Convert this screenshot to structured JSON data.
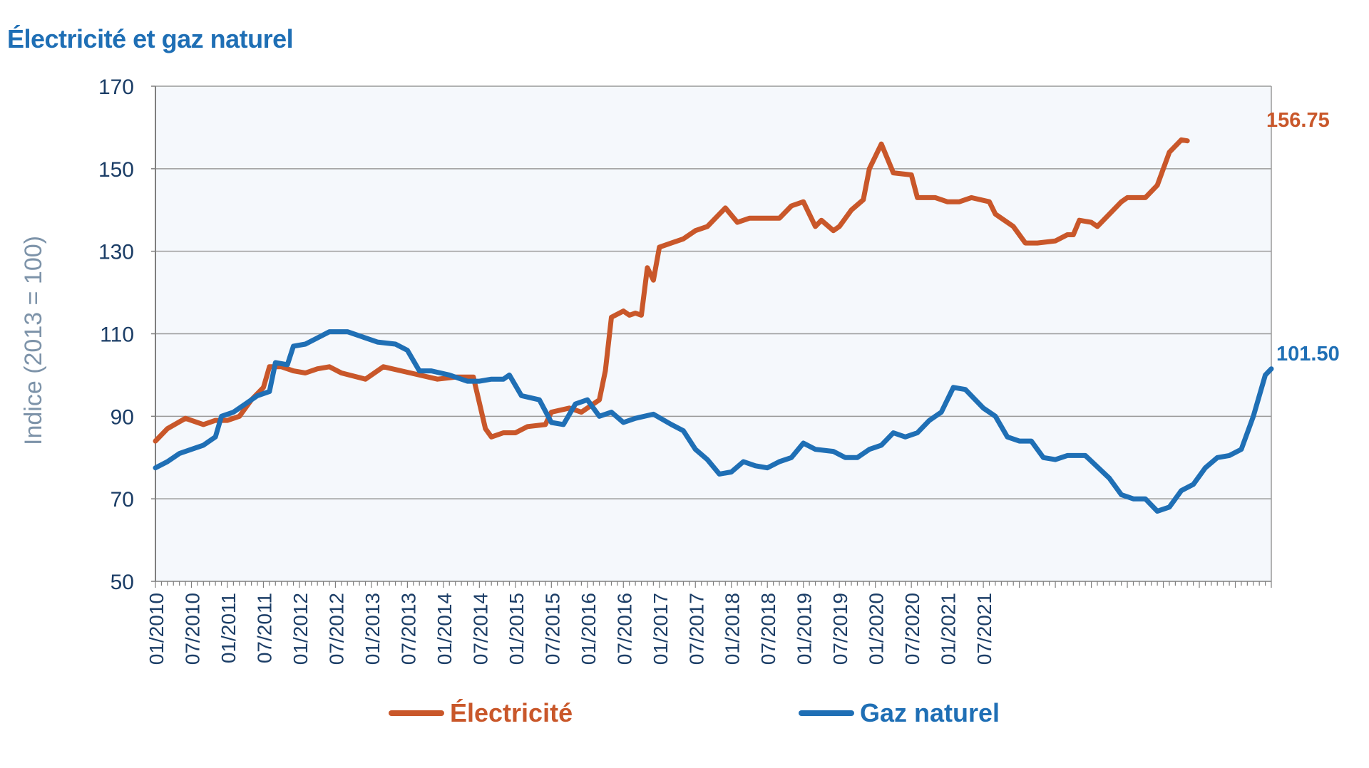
{
  "title": "Électricité et gaz naturel",
  "chart_data": {
    "type": "line",
    "title": "Électricité et gaz naturel",
    "ylabel": "Indice (2013 = 100)",
    "xlabel": "",
    "ylim": [
      50,
      170
    ],
    "yticks": [
      50,
      70,
      90,
      110,
      130,
      150,
      170
    ],
    "x_range": [
      "01/2010",
      "11/2021"
    ],
    "x_tick_labels": [
      "01/2010",
      "07/2010",
      "01/2011",
      "07/2011",
      "01/2012",
      "07/2012",
      "01/2013",
      "07/2013",
      "01/2014",
      "07/2014",
      "01/2015",
      "07/2015",
      "01/2016",
      "07/2016",
      "01/2017",
      "07/2017",
      "01/2018",
      "07/2018",
      "01/2019",
      "07/2019",
      "01/2020",
      "07/2020",
      "01/2021",
      "07/2021"
    ],
    "grid": true,
    "legend_position": "bottom",
    "series": [
      {
        "name": "Électricité",
        "color": "#c9572a",
        "end_label": "156.75",
        "points": [
          [
            "01/2010",
            84
          ],
          [
            "03/2010",
            87
          ],
          [
            "06/2010",
            89.5
          ],
          [
            "09/2010",
            88
          ],
          [
            "11/2010",
            89
          ],
          [
            "01/2011",
            89
          ],
          [
            "03/2011",
            90
          ],
          [
            "05/2011",
            94
          ],
          [
            "07/2011",
            97
          ],
          [
            "08/2011",
            102
          ],
          [
            "10/2011",
            102
          ],
          [
            "12/2011",
            101
          ],
          [
            "02/2012",
            100.5
          ],
          [
            "04/2012",
            101.5
          ],
          [
            "06/2012",
            102
          ],
          [
            "08/2012",
            100.5
          ],
          [
            "12/2012",
            99
          ],
          [
            "03/2013",
            102
          ],
          [
            "06/2013",
            101
          ],
          [
            "09/2013",
            100
          ],
          [
            "12/2013",
            99
          ],
          [
            "03/2014",
            99.5
          ],
          [
            "06/2014",
            99.5
          ],
          [
            "08/2014",
            87
          ],
          [
            "09/2014",
            85
          ],
          [
            "11/2014",
            86
          ],
          [
            "01/2015",
            86
          ],
          [
            "03/2015",
            87.5
          ],
          [
            "06/2015",
            88
          ],
          [
            "07/2015",
            91
          ],
          [
            "10/2015",
            92
          ],
          [
            "12/2015",
            91
          ],
          [
            "03/2016",
            94
          ],
          [
            "04/2016",
            101
          ],
          [
            "05/2016",
            114
          ],
          [
            "07/2016",
            115.5
          ],
          [
            "08/2016",
            114.5
          ],
          [
            "09/2016",
            115
          ],
          [
            "10/2016",
            114.5
          ],
          [
            "11/2016",
            126
          ],
          [
            "12/2016",
            123
          ],
          [
            "01/2017",
            131
          ],
          [
            "03/2017",
            132
          ],
          [
            "05/2017",
            133
          ],
          [
            "07/2017",
            135
          ],
          [
            "09/2017",
            136
          ],
          [
            "11/2017",
            139
          ],
          [
            "12/2017",
            140.5
          ],
          [
            "02/2018",
            137
          ],
          [
            "04/2018",
            138
          ],
          [
            "09/2018",
            138
          ],
          [
            "11/2018",
            141
          ],
          [
            "01/2019",
            142
          ],
          [
            "03/2019",
            136
          ],
          [
            "04/2019",
            137.5
          ],
          [
            "06/2019",
            135
          ],
          [
            "07/2019",
            136
          ],
          [
            "09/2019",
            140
          ],
          [
            "11/2019",
            142.5
          ],
          [
            "12/2019",
            150
          ],
          [
            "02/2020",
            156
          ],
          [
            "04/2020",
            149
          ],
          [
            "07/2020",
            148.5
          ],
          [
            "08/2020",
            143
          ],
          [
            "11/2020",
            143
          ],
          [
            "01/2021",
            142
          ],
          [
            "03/2021",
            142
          ],
          [
            "05/2021",
            143
          ],
          [
            "08/2021",
            142
          ],
          [
            "09/2021",
            139
          ],
          [
            "12/2021",
            136
          ],
          [
            "02/2022",
            132
          ],
          [
            "04/2022",
            132
          ],
          [
            "07/2022",
            132.5
          ],
          [
            "09/2022",
            134
          ],
          [
            "10/2022",
            134
          ],
          [
            "11/2022",
            137.5
          ],
          [
            "01/2023",
            137
          ],
          [
            "02/2023",
            136
          ],
          [
            "06/2023",
            142
          ],
          [
            "07/2023",
            143
          ],
          [
            "10/2023",
            143
          ],
          [
            "12/2023",
            146
          ],
          [
            "02/2024",
            154
          ],
          [
            "04/2024",
            157
          ],
          [
            "05/2024",
            156.75
          ]
        ]
      },
      {
        "name": "Gaz naturel",
        "color": "#1f6fb5",
        "end_label": "101.50",
        "points": [
          [
            "01/2010",
            77.5
          ],
          [
            "03/2010",
            79
          ],
          [
            "05/2010",
            81
          ],
          [
            "07/2010",
            82
          ],
          [
            "09/2010",
            83
          ],
          [
            "11/2010",
            85
          ],
          [
            "12/2010",
            90
          ],
          [
            "02/2011",
            91
          ],
          [
            "04/2011",
            93
          ],
          [
            "06/2011",
            95
          ],
          [
            "08/2011",
            96
          ],
          [
            "09/2011",
            103
          ],
          [
            "11/2011",
            102.5
          ],
          [
            "12/2011",
            107
          ],
          [
            "02/2012",
            107.5
          ],
          [
            "04/2012",
            109
          ],
          [
            "06/2012",
            110.5
          ],
          [
            "09/2012",
            110.5
          ],
          [
            "12/2012",
            109
          ],
          [
            "02/2013",
            108
          ],
          [
            "05/2013",
            107.5
          ],
          [
            "07/2013",
            106
          ],
          [
            "09/2013",
            101
          ],
          [
            "11/2013",
            101
          ],
          [
            "02/2014",
            100
          ],
          [
            "05/2014",
            98.5
          ],
          [
            "07/2014",
            98.5
          ],
          [
            "09/2014",
            99
          ],
          [
            "11/2014",
            99
          ],
          [
            "12/2014",
            100
          ],
          [
            "02/2015",
            95
          ],
          [
            "05/2015",
            94
          ],
          [
            "07/2015",
            88.5
          ],
          [
            "09/2015",
            88
          ],
          [
            "11/2015",
            93
          ],
          [
            "01/2016",
            94
          ],
          [
            "03/2016",
            90
          ],
          [
            "05/2016",
            91
          ],
          [
            "07/2016",
            88.5
          ],
          [
            "09/2016",
            89.5
          ],
          [
            "12/2016",
            90.5
          ],
          [
            "03/2017",
            88
          ],
          [
            "05/2017",
            86.5
          ],
          [
            "07/2017",
            82
          ],
          [
            "09/2017",
            79.5
          ],
          [
            "11/2017",
            76
          ],
          [
            "01/2018",
            76.5
          ],
          [
            "03/2018",
            79
          ],
          [
            "05/2018",
            78
          ],
          [
            "07/2018",
            77.5
          ],
          [
            "09/2018",
            79
          ],
          [
            "11/2018",
            80
          ],
          [
            "01/2019",
            83.5
          ],
          [
            "03/2019",
            82
          ],
          [
            "06/2019",
            81.5
          ],
          [
            "08/2019",
            80
          ],
          [
            "10/2019",
            80
          ],
          [
            "12/2019",
            82
          ],
          [
            "02/2020",
            83
          ],
          [
            "04/2020",
            86
          ],
          [
            "06/2020",
            85
          ],
          [
            "08/2020",
            86
          ],
          [
            "10/2020",
            89
          ],
          [
            "12/2020",
            91
          ],
          [
            "02/2021",
            97
          ],
          [
            "04/2021",
            96.5
          ],
          [
            "07/2021",
            92
          ],
          [
            "09/2021",
            90
          ],
          [
            "11/2021",
            85
          ],
          [
            "01/2022",
            84
          ],
          [
            "03/2022",
            84
          ],
          [
            "05/2022",
            80
          ],
          [
            "07/2022",
            79.5
          ],
          [
            "09/2022",
            80.5
          ],
          [
            "12/2022",
            80.5
          ],
          [
            "04/2023",
            75
          ],
          [
            "06/2023",
            71
          ],
          [
            "08/2023",
            70
          ],
          [
            "10/2023",
            70
          ],
          [
            "12/2023",
            67
          ],
          [
            "02/2024",
            68
          ],
          [
            "04/2024",
            72
          ],
          [
            "06/2024",
            73.5
          ],
          [
            "08/2024",
            77.5
          ],
          [
            "10/2024",
            80
          ],
          [
            "12/2024",
            80.5
          ],
          [
            "02/2025",
            82
          ],
          [
            "04/2025",
            90
          ],
          [
            "06/2025",
            100
          ],
          [
            "07/2025",
            101.5
          ]
        ]
      }
    ]
  }
}
